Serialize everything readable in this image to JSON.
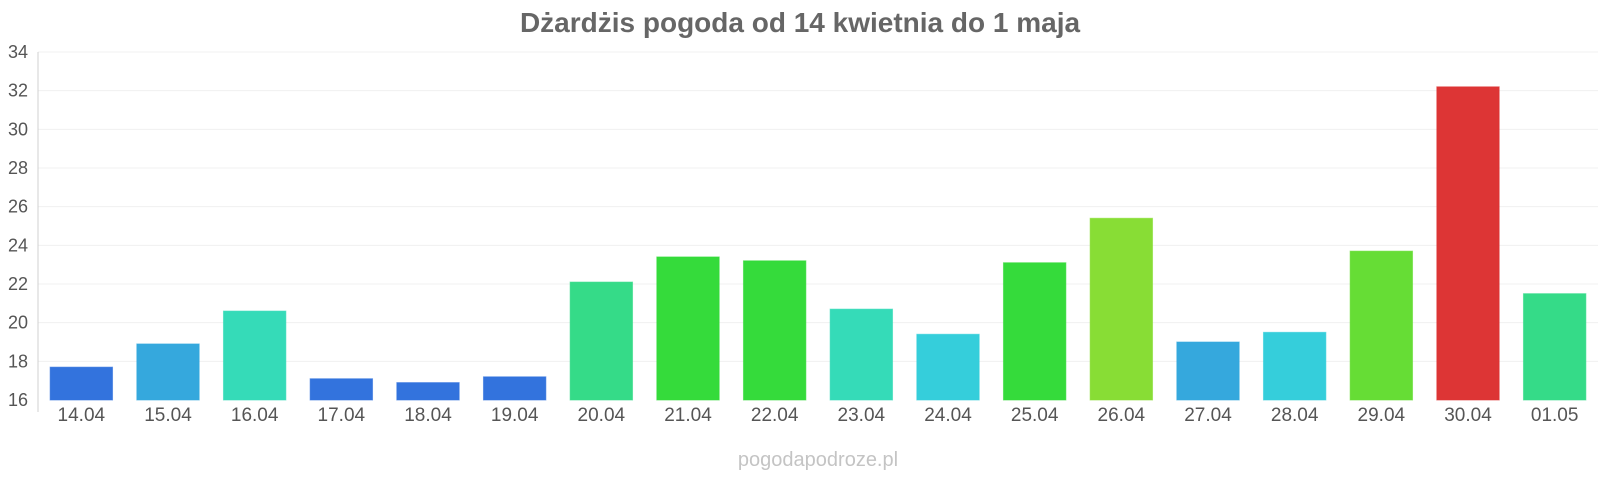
{
  "chart_data": {
    "type": "bar",
    "title": "Dżardżis pogoda od 14 kwietnia do 1 maja",
    "xlabel": "",
    "ylabel": "",
    "ylim": [
      16,
      34
    ],
    "yticks": [
      16,
      18,
      20,
      22,
      24,
      26,
      28,
      30,
      32,
      34
    ],
    "grid": true,
    "categories": [
      "14.04",
      "15.04",
      "16.04",
      "17.04",
      "18.04",
      "19.04",
      "20.04",
      "21.04",
      "22.04",
      "23.04",
      "24.04",
      "25.04",
      "26.04",
      "27.04",
      "28.04",
      "29.04",
      "30.04",
      "01.05"
    ],
    "values": [
      17.7,
      18.9,
      20.6,
      17.1,
      16.9,
      17.2,
      22.1,
      23.4,
      23.2,
      20.7,
      19.4,
      23.1,
      25.4,
      19.0,
      19.5,
      23.7,
      32.2,
      21.5
    ],
    "colors": [
      "#3373dd",
      "#35a8dd",
      "#35dbb8",
      "#3373dd",
      "#3373dd",
      "#3373dd",
      "#35db88",
      "#35db3b",
      "#35db3b",
      "#35dbb8",
      "#35cedb",
      "#35db3b",
      "#88dd35",
      "#35a8dd",
      "#35cedb",
      "#66dd35",
      "#dd3535",
      "#35db88"
    ]
  },
  "source_label": "pogodapodroze.pl"
}
